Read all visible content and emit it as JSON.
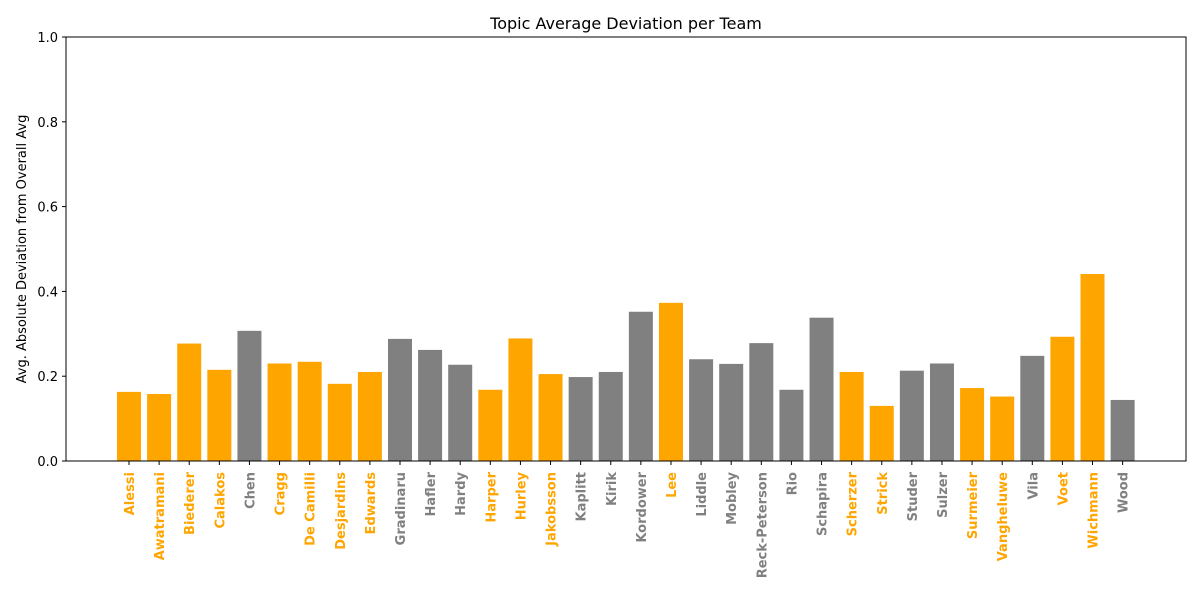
{
  "chart_data": {
    "type": "bar",
    "title": "Topic Average Deviation per Team",
    "xlabel": "",
    "ylabel": "Avg. Absolute Deviation from Overall Avg",
    "ylim": [
      0,
      1.0
    ],
    "yticks": [
      "0.0",
      "0.2",
      "0.4",
      "0.6",
      "0.8",
      "1.0"
    ],
    "ytick_values": [
      0,
      0.2,
      0.4,
      0.6,
      0.8,
      1.0
    ],
    "grid": false,
    "legend": "none",
    "colors": {
      "highlight": "#FFA500",
      "default": "#808080"
    },
    "categories": [
      "Alessi",
      "Awatramani",
      "Biederer",
      "Calakos",
      "Chen",
      "Cragg",
      "De Camilli",
      "Desjardins",
      "Edwards",
      "Gradinaru",
      "Hafler",
      "Hardy",
      "Harper",
      "Hurley",
      "Jakobsson",
      "Kaplitt",
      "Kirik",
      "Kordower",
      "Lee",
      "Liddle",
      "Mobley",
      "Reck-Peterson",
      "Rio",
      "Schapira",
      "Scherzer",
      "Strick",
      "Studer",
      "Sulzer",
      "Surmeier",
      "Vangheluwe",
      "Vila",
      "Voet",
      "Wichmann",
      "Wood"
    ],
    "values": [
      0.163,
      0.158,
      0.277,
      0.215,
      0.307,
      0.23,
      0.234,
      0.182,
      0.21,
      0.288,
      0.262,
      0.227,
      0.168,
      0.289,
      0.205,
      0.198,
      0.21,
      0.352,
      0.373,
      0.24,
      0.229,
      0.278,
      0.168,
      0.338,
      0.21,
      0.13,
      0.213,
      0.23,
      0.172,
      0.152,
      0.248,
      0.293,
      0.441,
      0.144
    ],
    "highlighted": [
      true,
      true,
      true,
      true,
      false,
      true,
      true,
      true,
      true,
      false,
      false,
      false,
      true,
      true,
      true,
      false,
      false,
      false,
      true,
      false,
      false,
      false,
      false,
      false,
      true,
      true,
      false,
      false,
      true,
      true,
      false,
      true,
      true,
      false
    ]
  }
}
